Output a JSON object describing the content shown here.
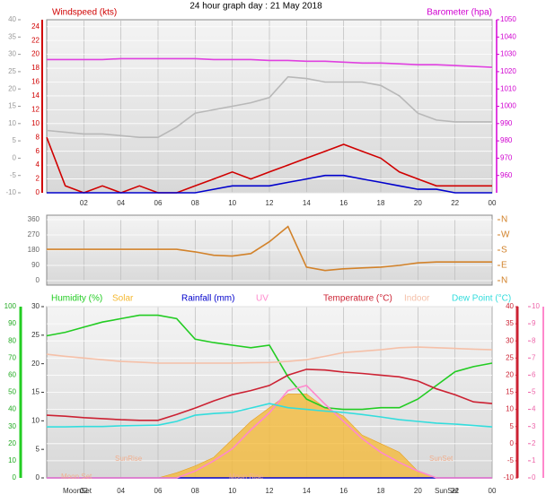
{
  "chart_data": [
    {
      "type": "line",
      "title": "24 hour graph day : 21 May 2018",
      "ylabel": "Windspeed (kts)",
      "y2label": "Barometer (hpa)",
      "x": [
        0,
        1,
        2,
        3,
        4,
        5,
        6,
        7,
        8,
        9,
        10,
        11,
        12,
        13,
        14,
        15,
        16,
        17,
        18,
        19,
        20,
        21,
        22,
        23,
        24
      ],
      "xlim": [
        0,
        24
      ],
      "xticks": [
        {
          "value": 2,
          "label": "02"
        },
        {
          "value": 4,
          "label": "04"
        },
        {
          "value": 6,
          "label": "06"
        },
        {
          "value": 8,
          "label": "08"
        },
        10,
        12,
        14,
        16,
        18,
        20,
        22,
        {
          "value": 24,
          "label": "00"
        }
      ],
      "ylim": [
        0,
        25
      ],
      "yticks": [
        0,
        2,
        4,
        6,
        8,
        10,
        12,
        14,
        16,
        18,
        20,
        22,
        24
      ],
      "y2lim": [
        950,
        1050
      ],
      "y2ticks": [
        960,
        970,
        980,
        990,
        1000,
        1010,
        1020,
        1030,
        1040,
        1050
      ],
      "y3lim": [
        -10,
        40
      ],
      "y3ticks": [
        -10,
        -5,
        0,
        5,
        10,
        15,
        20,
        25,
        30,
        35,
        40
      ],
      "grid": true,
      "series": [
        {
          "color": "#d00000",
          "values": [
            8,
            1,
            0,
            1,
            0,
            1,
            0,
            0,
            1,
            2,
            3,
            2,
            3,
            4,
            5,
            6,
            7,
            6,
            5,
            3,
            2,
            1,
            1,
            1,
            1
          ]
        },
        {
          "color": "#0000cc",
          "values": [
            0,
            0,
            0,
            0,
            0,
            0,
            0,
            0,
            0,
            0.5,
            1,
            1,
            1,
            1.5,
            2,
            2.5,
            2.5,
            2,
            1.5,
            1,
            0.5,
            0.5,
            0,
            0,
            0
          ]
        },
        {
          "color": "#e040e0",
          "axis": "y2",
          "values": [
            1027,
            1027,
            1027,
            1027,
            1027.5,
            1027.5,
            1027.5,
            1027.5,
            1027.5,
            1027,
            1027,
            1027,
            1026.5,
            1026.5,
            1026,
            1026,
            1025.5,
            1025,
            1025,
            1024.5,
            1024,
            1024,
            1023.5,
            1023,
            1022.5
          ]
        },
        {
          "color": "#b8b8b8",
          "axis": "y3",
          "values": [
            8,
            7.5,
            7,
            7,
            6.5,
            6,
            6,
            9,
            13,
            14,
            15,
            16,
            17.5,
            23.5,
            23,
            22,
            22,
            22,
            21,
            18,
            13,
            11,
            10.5,
            10.5,
            10.5
          ]
        }
      ]
    },
    {
      "type": "line",
      "x": [
        0,
        1,
        2,
        3,
        4,
        5,
        6,
        7,
        8,
        9,
        10,
        11,
        12,
        13,
        14,
        15,
        16,
        17,
        18,
        19,
        20,
        21,
        22,
        23,
        24
      ],
      "xlim": [
        0,
        24
      ],
      "xticks": [
        {
          "value": 2,
          "label": "02"
        },
        {
          "value": 4,
          "label": "04"
        },
        {
          "value": 6,
          "label": "06"
        },
        {
          "value": 8,
          "label": "08"
        },
        10,
        12,
        14,
        16,
        18,
        20,
        22,
        {
          "value": 24,
          "label": "00"
        }
      ],
      "ylim": [
        0,
        360
      ],
      "yticks": [
        0,
        90,
        180,
        270,
        360
      ],
      "y2lim": [
        0,
        360
      ],
      "y2ticks": [
        {
          "value": 0,
          "label": "N"
        },
        {
          "value": 90,
          "label": "E"
        },
        {
          "value": 180,
          "label": "S"
        },
        {
          "value": 270,
          "label": "W"
        },
        {
          "value": 360,
          "label": "N"
        }
      ],
      "grid": true,
      "series": [
        {
          "color": "#d2822a",
          "values": [
            185,
            185,
            185,
            185,
            185,
            185,
            185,
            185,
            170,
            150,
            145,
            160,
            230,
            320,
            80,
            60,
            70,
            75,
            80,
            90,
            105,
            110,
            110,
            110,
            110
          ]
        }
      ]
    },
    {
      "type": "line",
      "x": [
        0,
        1,
        2,
        3,
        4,
        5,
        6,
        7,
        8,
        9,
        10,
        11,
        12,
        13,
        14,
        15,
        16,
        17,
        18,
        19,
        20,
        21,
        22,
        23,
        24
      ],
      "xlim": [
        0,
        24
      ],
      "xticks": [
        {
          "value": 2,
          "label": "02"
        },
        {
          "value": 4,
          "label": "04"
        },
        {
          "value": 6,
          "label": "06"
        },
        {
          "value": 8,
          "label": "08"
        },
        10,
        12,
        14,
        16,
        18,
        20,
        22,
        {
          "value": 24,
          "label": "00"
        }
      ],
      "ylim": [
        0,
        100
      ],
      "yticks": [
        0,
        10,
        20,
        30,
        40,
        50,
        60,
        70,
        80,
        90,
        100
      ],
      "y3lim": [
        0,
        30
      ],
      "y3ticks": [
        0,
        5,
        10,
        15,
        20,
        25,
        30
      ],
      "y2lim": [
        -10,
        40
      ],
      "y2ticks": [
        -10,
        -5,
        0,
        5,
        10,
        15,
        20,
        25,
        30,
        35,
        40
      ],
      "y4lim": [
        0,
        10
      ],
      "y4ticks": [
        0,
        1,
        2,
        3,
        4,
        5,
        6,
        7,
        8,
        9,
        10
      ],
      "grid": true,
      "annotations": [
        "SunRise",
        "SunSet",
        "Moon Set",
        "Moon Rise",
        "MoonSet",
        "SunSet"
      ],
      "series": [
        {
          "name": "Humidity (%)",
          "color": "#22cc22",
          "values": [
            83,
            85,
            88,
            91,
            93,
            95,
            95,
            93,
            81,
            79,
            77.5,
            76,
            77.5,
            59,
            46,
            41,
            40,
            40,
            41,
            41,
            46,
            54,
            62,
            65,
            67
          ]
        },
        {
          "name": "Solar",
          "type": "area",
          "color": "#f5b830",
          "values": [
            0,
            0,
            0,
            0,
            0,
            0,
            0,
            3,
            7,
            12,
            22.5,
            33,
            41,
            49,
            49,
            41,
            36,
            25,
            20,
            15,
            4,
            0,
            0,
            0,
            0
          ]
        },
        {
          "name": "Rainfall (mm)",
          "axis": "y3",
          "color": "#0000cc",
          "values": [
            0,
            0,
            0,
            0,
            0,
            0,
            0,
            0,
            0,
            0,
            0,
            0,
            0,
            0,
            0,
            0,
            0,
            0,
            0,
            0,
            0,
            0,
            0,
            0,
            0
          ]
        },
        {
          "name": "UV",
          "axis": "y4",
          "color": "#ff88cc",
          "values": [
            0,
            0,
            0,
            0,
            0,
            0,
            0,
            0,
            0.4,
            1,
            1.7,
            2.8,
            3.8,
            5.1,
            5.4,
            4.3,
            3.3,
            2.3,
            1.5,
            0.9,
            0.4,
            0,
            0,
            0,
            0
          ]
        },
        {
          "name": "Temperature (°C)",
          "axis": "y2",
          "color": "#cc2233",
          "values": [
            8.3,
            8,
            7.6,
            7.3,
            7,
            6.8,
            6.8,
            8.5,
            10.4,
            12.5,
            14.3,
            15.5,
            17,
            20,
            21.7,
            21.5,
            20.9,
            20.5,
            20,
            19.5,
            18.3,
            16,
            14.3,
            12.2,
            11.7
          ]
        },
        {
          "name": "Indoor",
          "axis": "y2",
          "color": "#f5c0a8",
          "values": [
            26.1,
            25.5,
            25,
            24.5,
            24,
            23.8,
            23.5,
            23.5,
            23.5,
            23.5,
            23.5,
            23.6,
            23.7,
            24,
            24.5,
            25.5,
            26.6,
            27,
            27.4,
            28,
            28.2,
            28,
            27.8,
            27.6,
            27.4
          ]
        },
        {
          "name": "Dew Point (°C)",
          "axis": "y2",
          "color": "#33dddd",
          "values": [
            4.9,
            4.9,
            5,
            5,
            5.2,
            5.3,
            5.4,
            6.5,
            8.3,
            8.8,
            9.1,
            10.4,
            11.7,
            10.5,
            10,
            9.5,
            9.1,
            8.5,
            7.8,
            7,
            6.5,
            6,
            5.7,
            5.3,
            4.9
          ]
        }
      ]
    }
  ]
}
